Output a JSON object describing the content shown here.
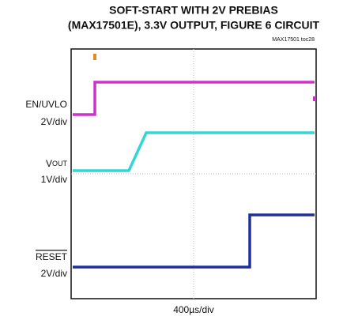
{
  "chart_data": {
    "type": "scope",
    "title": [
      "SOFT-START WITH 2V PREBIAS",
      "(MAX17501E), 3.3V OUTPUT, FIGURE 6 CIRCUIT"
    ],
    "figure_id": "MAX17501 toc28",
    "x_scale": "400µs/div",
    "channels": [
      {
        "name": "EN/UVLO",
        "scale": "2V/div",
        "color": "#cc33cc"
      },
      {
        "name_main": "V",
        "name_sub": "OUT",
        "scale": "1V/div",
        "color": "#33d6d6"
      },
      {
        "name": "RESET",
        "overline": true,
        "scale": "2V/div",
        "color": "#1f2f9a"
      }
    ]
  }
}
